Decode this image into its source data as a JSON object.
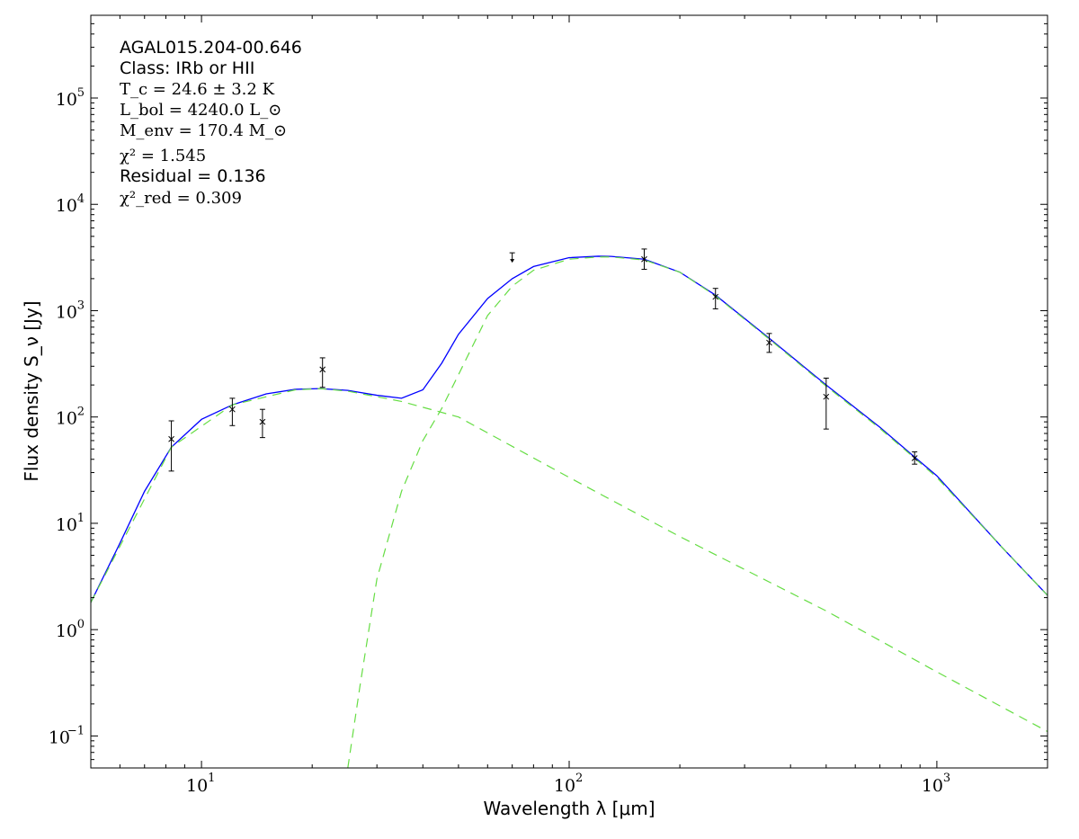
{
  "chart_data": {
    "type": "scatter",
    "title": "",
    "xlabel": "Wavelength λ [μm]",
    "ylabel": "Flux density S_ν [Jy]",
    "xscale": "log",
    "yscale": "log",
    "xlim": [
      5,
      2000
    ],
    "ylim": [
      0.05,
      600000
    ],
    "grid": false,
    "x_ticks": [
      {
        "value": 10,
        "label": "10"
      },
      {
        "value": 100,
        "label": "10"
      },
      {
        "value": 1000,
        "label": "10"
      }
    ],
    "x_tick_exponents": [
      "1",
      "2",
      "3"
    ],
    "y_ticks": [
      {
        "value": 0.1,
        "base": "10",
        "exp": "−1"
      },
      {
        "value": 1,
        "base": "10",
        "exp": "0"
      },
      {
        "value": 10,
        "base": "10",
        "exp": "1"
      },
      {
        "value": 100,
        "base": "10",
        "exp": "2"
      },
      {
        "value": 1000,
        "base": "10",
        "exp": "3"
      },
      {
        "value": 10000,
        "base": "10",
        "exp": "4"
      },
      {
        "value": 100000,
        "base": "10",
        "exp": "5"
      }
    ],
    "annotations": {
      "source": "AGAL015.204-00.646",
      "class": "Class: IRb or HII",
      "tc": "T_c = 24.6 ± 3.2 K",
      "lbol": "L_bol = 4240.0 L_⊙",
      "menv": "M_env = 170.4 M_⊙",
      "chi2": "χ² = 1.545",
      "residual": "Residual = 0.136",
      "chi2red": "χ²_red = 0.309"
    },
    "points": [
      {
        "x": 8.28,
        "y": 62,
        "err_low": 31,
        "err_high": 92
      },
      {
        "x": 12.13,
        "y": 118,
        "err_low": 83,
        "err_high": 150
      },
      {
        "x": 14.65,
        "y": 90,
        "err_low": 64,
        "err_high": 118
      },
      {
        "x": 21.34,
        "y": 280,
        "err_low": 190,
        "err_high": 360
      },
      {
        "x": 160,
        "y": 3050,
        "err_low": 2450,
        "err_high": 3800
      },
      {
        "x": 250,
        "y": 1350,
        "err_low": 1040,
        "err_high": 1620
      },
      {
        "x": 350,
        "y": 500,
        "err_low": 405,
        "err_high": 610
      },
      {
        "x": 500,
        "y": 155,
        "err_low": 77,
        "err_high": 232
      },
      {
        "x": 870,
        "y": 41,
        "err_low": 36,
        "err_high": 47
      }
    ],
    "upper_limits": [
      {
        "x": 70,
        "y": 3500
      }
    ],
    "colors": {
      "total_model": "#0000ff",
      "components": "#66dd44",
      "points": "#000000"
    },
    "series": [
      {
        "style": "solid",
        "x": [
          5,
          6,
          7,
          8.28,
          10,
          12.13,
          15,
          18,
          21,
          25,
          30,
          35,
          40,
          45,
          50,
          60,
          70,
          80,
          100,
          120,
          130,
          160,
          200,
          250,
          350,
          500,
          700,
          870,
          1000,
          1500,
          2000
        ],
        "y": [
          1.8,
          6.5,
          20,
          52,
          95,
          130,
          165,
          182,
          185,
          178,
          160,
          150,
          180,
          320,
          600,
          1300,
          2000,
          2600,
          3150,
          3250,
          3240,
          3050,
          2300,
          1400,
          550,
          200,
          80,
          42,
          28,
          6,
          2.1
        ]
      },
      {
        "style": "dashed",
        "x": [
          5,
          8.28,
          12.13,
          18,
          21,
          25,
          35,
          50,
          100,
          200,
          500,
          1000,
          2000
        ],
        "y": [
          1.8,
          52,
          130,
          180,
          185,
          175,
          140,
          100,
          27,
          7.5,
          1.5,
          0.4,
          0.11
        ]
      },
      {
        "style": "dashed",
        "x": [
          25,
          27,
          30,
          35,
          40,
          45,
          50,
          60,
          70,
          80,
          100,
          120,
          130,
          160,
          200,
          250,
          350,
          500,
          700,
          870,
          1000,
          1500,
          2000
        ],
        "y": [
          0.05,
          0.3,
          3,
          20,
          60,
          120,
          250,
          900,
          1700,
          2400,
          3050,
          3200,
          3200,
          3000,
          2300,
          1380,
          540,
          195,
          78,
          41,
          27,
          6,
          2.1
        ]
      }
    ]
  }
}
